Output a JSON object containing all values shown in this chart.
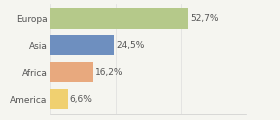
{
  "categories": [
    "Europa",
    "Asia",
    "Africa",
    "America"
  ],
  "values": [
    52.7,
    24.5,
    16.2,
    6.6
  ],
  "labels": [
    "52,7%",
    "24,5%",
    "16,2%",
    "6,6%"
  ],
  "bar_colors": [
    "#b5c98a",
    "#6e8fbf",
    "#e8a97e",
    "#f0d070"
  ],
  "background_color": "#f5f5f0",
  "xlim": [
    0,
    75
  ],
  "bar_height": 0.75,
  "label_fontsize": 6.5,
  "tick_fontsize": 6.5,
  "text_color": "#555555"
}
